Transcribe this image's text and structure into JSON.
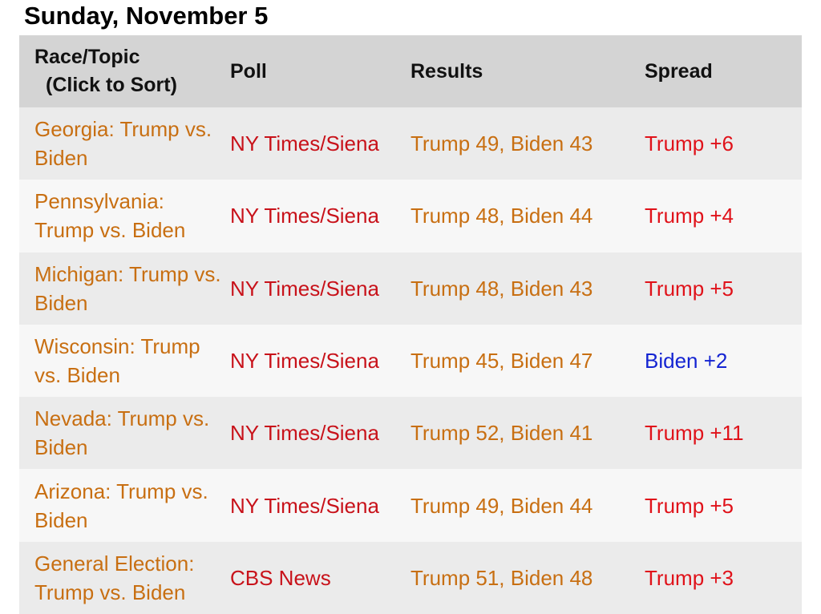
{
  "title": "Sunday, November 5",
  "table": {
    "headers": {
      "race_line1": "Race/Topic",
      "race_line2": "(Click to Sort)",
      "poll": "Poll",
      "results": "Results",
      "spread": "Spread"
    },
    "rows": [
      {
        "race": "Georgia: Trump vs. Biden",
        "poll": "NY Times/Siena",
        "results": "Trump 49, Biden 43",
        "spread": "Trump +6",
        "spread_color": "#e0121a"
      },
      {
        "race": "Pennsylvania: Trump vs. Biden",
        "poll": "NY Times/Siena",
        "results": "Trump 48, Biden 44",
        "spread": "Trump +4",
        "spread_color": "#e0121a"
      },
      {
        "race": "Michigan: Trump vs. Biden",
        "poll": "NY Times/Siena",
        "results": "Trump 48, Biden 43",
        "spread": "Trump +5",
        "spread_color": "#e0121a"
      },
      {
        "race": "Wisconsin: Trump vs. Biden",
        "poll": "NY Times/Siena",
        "results": "Trump 45, Biden 47",
        "spread": "Biden +2",
        "spread_color": "#1424d2"
      },
      {
        "race": "Nevada: Trump vs. Biden",
        "poll": "NY Times/Siena",
        "results": "Trump 52, Biden 41",
        "spread": "Trump +11",
        "spread_color": "#e0121a"
      },
      {
        "race": "Arizona: Trump vs. Biden",
        "poll": "NY Times/Siena",
        "results": "Trump 49, Biden 44",
        "spread": "Trump +5",
        "spread_color": "#e0121a"
      },
      {
        "race": "General Election: Trump vs. Biden",
        "poll": "CBS News",
        "results": "Trump 51, Biden 48",
        "spread": "Trump +3",
        "spread_color": "#e0121a"
      }
    ]
  }
}
